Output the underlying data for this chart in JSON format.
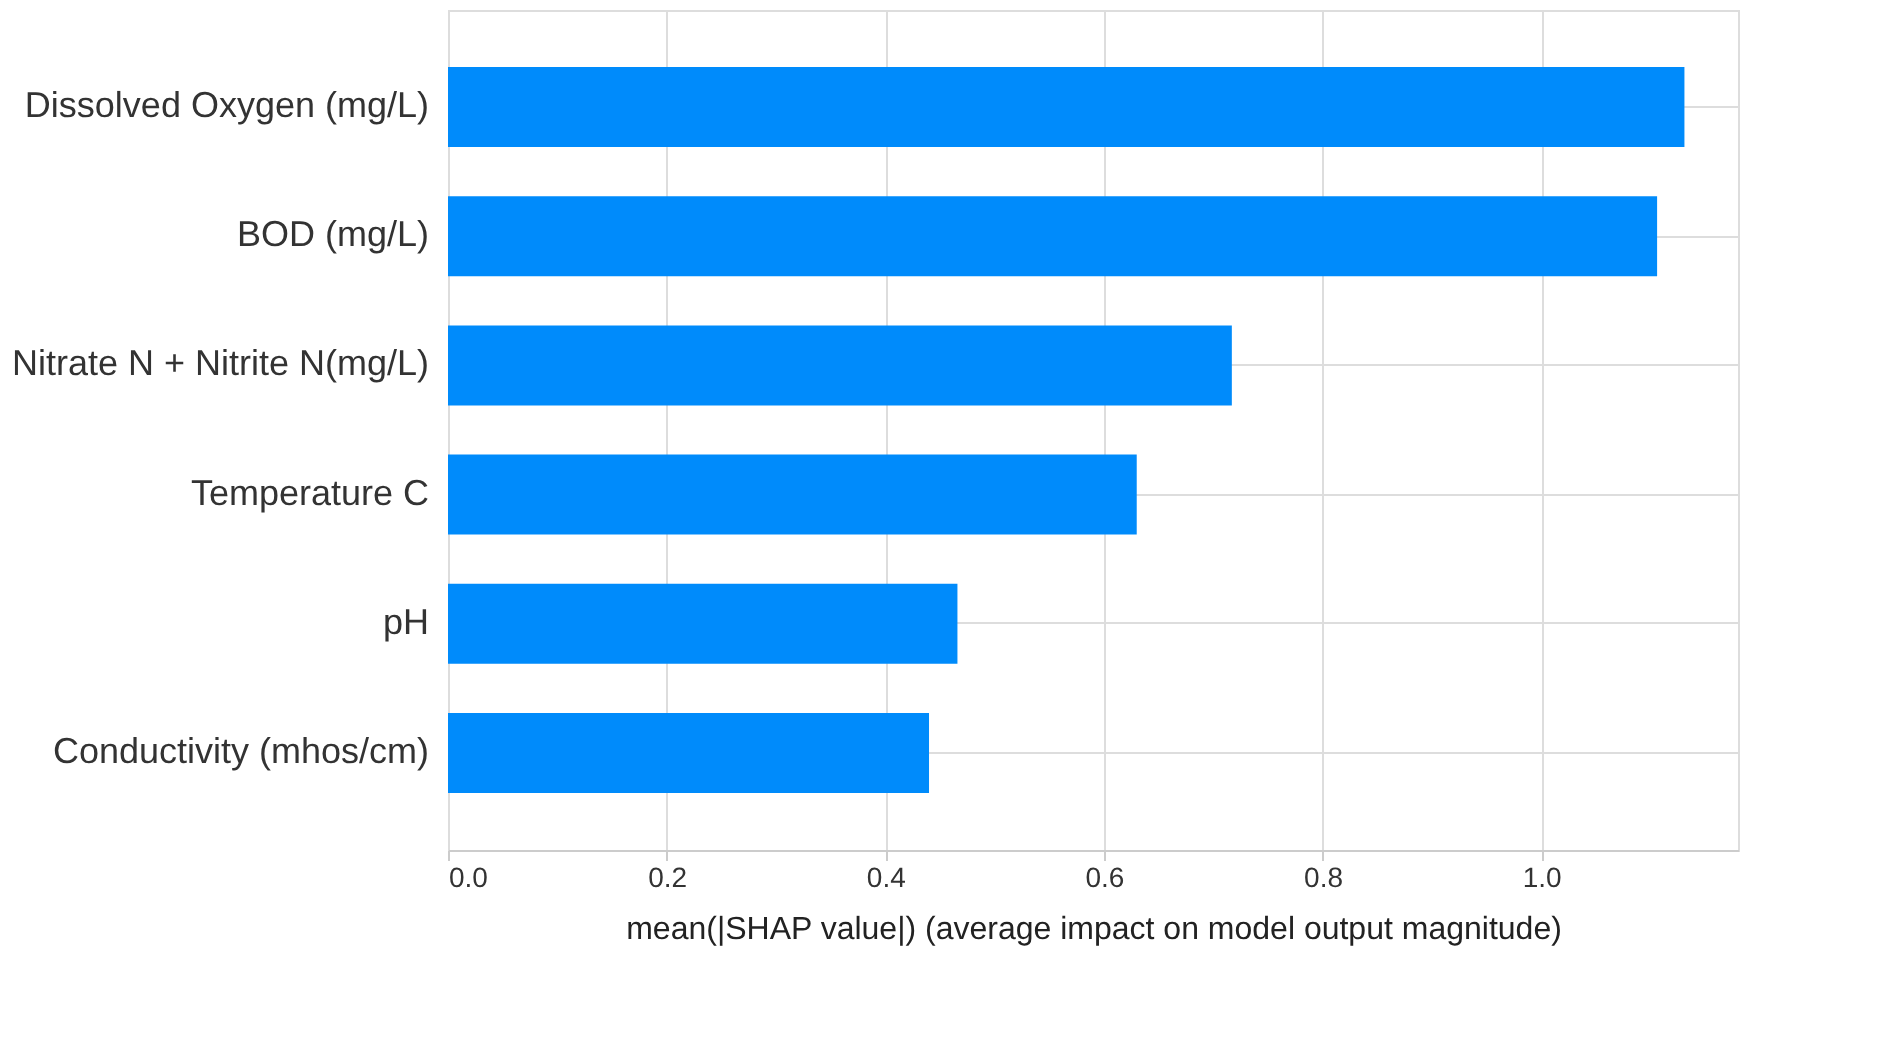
{
  "chart_data": {
    "type": "bar",
    "orientation": "horizontal",
    "xlabel": "mean(|SHAP value|) (average impact on model output magnitude)",
    "categories": [
      "Dissolved Oxygen (mg/L)",
      "BOD (mg/L)",
      "Nitrate N + Nitrite N(mg/L)",
      "Temperature C",
      "pH",
      "Conductivity (mhos/cm)"
    ],
    "values": [
      1.131,
      1.106,
      0.717,
      0.63,
      0.466,
      0.44
    ],
    "color": "#008bfb",
    "xlim": [
      0,
      1.18
    ],
    "xticks": [
      {
        "value": 0,
        "label": "0.0"
      },
      0.2,
      0.4,
      0.6,
      0.8,
      {
        "value": 1,
        "label": "1.0"
      }
    ],
    "grid": true
  }
}
